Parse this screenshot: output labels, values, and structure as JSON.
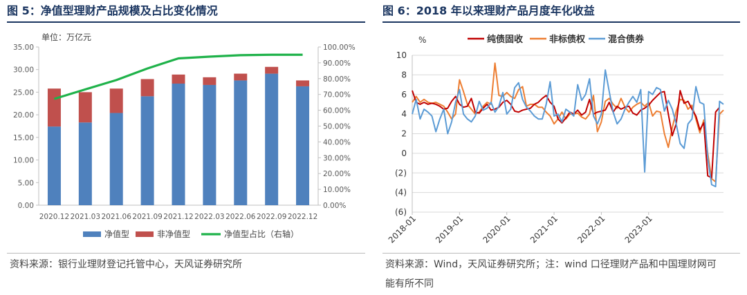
{
  "left": {
    "title": "图 5：净值型理财产品规模及占比变化情况",
    "source": "资料来源：银行业理财登记托管中心，天风证券研究所"
  },
  "right": {
    "title": "图 6：2018 年以来理财产品月度年化收益",
    "source_line1": "资料来源：Wind，天风证券研究所；注：wind 口径理财产品和中国理财网可",
    "source_line2": "能有所不同"
  },
  "chart_data": [
    {
      "type": "bar",
      "stacked": true,
      "unit_label": "单位：万亿元",
      "categories": [
        "2020.12",
        "2021.03",
        "2021.06",
        "2021.09",
        "2021.12",
        "2022.03",
        "2022.06",
        "2022.09",
        "2022.12"
      ],
      "series": [
        {
          "name": "净值型",
          "values": [
            17.4,
            18.3,
            20.4,
            24.1,
            26.9,
            26.6,
            27.6,
            29.1,
            26.3
          ],
          "color": "#4f81bd"
        },
        {
          "name": "非净值型",
          "values": [
            8.4,
            6.7,
            5.4,
            3.8,
            2.0,
            1.7,
            1.5,
            1.5,
            1.3
          ],
          "color": "#c0504d"
        },
        {
          "name": "净值型占比（右轴）",
          "type": "line",
          "axis": "right",
          "values": [
            67.2,
            73.2,
            79.1,
            86.4,
            92.8,
            93.9,
            94.8,
            95.1,
            95.1
          ],
          "color": "#1fb24a"
        }
      ],
      "y_left": {
        "min": 0,
        "max": 35,
        "ticks": [
          "0.00",
          "5.00",
          "10.00",
          "15.00",
          "20.00",
          "25.00",
          "30.00",
          "35.00"
        ]
      },
      "y_right": {
        "min": 0,
        "max": 100,
        "ticks": [
          "0.00%",
          "10.00%",
          "20.00%",
          "30.00%",
          "40.00%",
          "50.00%",
          "60.00%",
          "70.00%",
          "80.00%",
          "90.00%",
          "100.00%"
        ]
      },
      "legend": "bottom"
    },
    {
      "type": "line",
      "ylabel": "%",
      "x_ticks": [
        "2018-01",
        "2019-01",
        "2020-01",
        "2021-01",
        "2022-01",
        "2023-01"
      ],
      "y_ticks": [
        "(6)",
        "(4)",
        "(2)",
        "0",
        "2",
        "4",
        "6",
        "8",
        "10"
      ],
      "ylim": [
        -6,
        10
      ],
      "grid": true,
      "legend": "top",
      "series": [
        {
          "name": "纯债固收",
          "color": "#c00000",
          "values": [
            6.4,
            5.2,
            5.0,
            5.2,
            5.0,
            5.1,
            5.0,
            4.8,
            4.5,
            4.6,
            5.3,
            5.8,
            5.0,
            4.7,
            4.8,
            5.6,
            4.2,
            4.1,
            4.6,
            5.0,
            4.4,
            4.5,
            4.7,
            5.2,
            5.4,
            5.0,
            4.3,
            4.2,
            4.4,
            4.5,
            4.6,
            5.0,
            5.2,
            5.6,
            5.9,
            5.2,
            4.8,
            3.5,
            3.1,
            3.6,
            4.2,
            4.0,
            4.4,
            3.9,
            4.2,
            5.5,
            4.0,
            4.2,
            4.3,
            4.4,
            5.2,
            4.2,
            4.8,
            4.5,
            4.7,
            4.8,
            4.1,
            3.9,
            4.4,
            4.6,
            4.9,
            5.4,
            5.8,
            6.2,
            6.3,
            4.0,
            1.8,
            3.0,
            6.4,
            5.1,
            5.3,
            4.5,
            3.8,
            2.4,
            3.1,
            -2.3,
            -2.5,
            4.2,
            4.7
          ]
        },
        {
          "name": "非标债权",
          "color": "#ed7d31",
          "values": [
            5.2,
            5.8,
            5.2,
            5.5,
            5.2,
            5.1,
            5.2,
            5.0,
            4.8,
            4.2,
            3.5,
            4.0,
            7.5,
            6.3,
            5.0,
            4.5,
            4.0,
            4.2,
            4.8,
            5.2,
            5.0,
            9.2,
            5.9,
            5.8,
            6.2,
            5.8,
            5.6,
            6.5,
            6.8,
            4.8,
            5.0,
            5.0,
            4.7,
            4.7,
            4.2,
            3.8,
            3.0,
            3.5,
            4.2,
            3.5,
            4.0,
            4.0,
            4.1,
            3.7,
            3.5,
            4.0,
            5.9,
            2.2,
            3.2,
            5.3,
            5.6,
            5.0,
            4.6,
            5.6,
            4.7,
            4.2,
            4.7,
            5.0,
            5.2,
            4.8,
            5.2,
            3.8,
            4.3,
            4.2,
            2.0,
            0.6,
            2.6,
            4.3,
            5.5,
            5.4,
            4.5,
            4.9,
            3.5,
            2.1,
            3.4,
            0.0,
            -2.6,
            -2.9,
            4.0,
            4.4
          ]
        },
        {
          "name": "混合债券",
          "color": "#5b9bd5",
          "values": [
            4.0,
            5.5,
            3.5,
            4.5,
            4.2,
            3.8,
            2.2,
            3.5,
            4.5,
            2.0,
            3.2,
            5.2,
            6.5,
            4.0,
            3.5,
            3.2,
            3.8,
            5.3,
            4.4,
            4.6,
            5.2,
            4.2,
            4.8,
            6.2,
            4.0,
            4.5,
            6.7,
            7.2,
            5.5,
            4.7,
            4.3,
            3.8,
            3.5,
            3.5,
            5.0,
            7.3,
            3.8,
            4.0,
            3.2,
            4.5,
            4.2,
            3.8,
            7.0,
            5.4,
            6.0,
            7.6,
            3.8,
            3.0,
            4.0,
            8.5,
            6.3,
            4.2,
            3.0,
            3.5,
            4.5,
            5.2,
            5.8,
            5.2,
            6.5,
            -1.9,
            6.3,
            6.0,
            6.7,
            6.5,
            4.3,
            5.4,
            4.5,
            3.0,
            1.0,
            0.5,
            3.0,
            3.5,
            6.8,
            5.2,
            5.0,
            -0.5,
            -3.2,
            -3.4,
            5.3,
            5.0
          ]
        }
      ]
    }
  ]
}
